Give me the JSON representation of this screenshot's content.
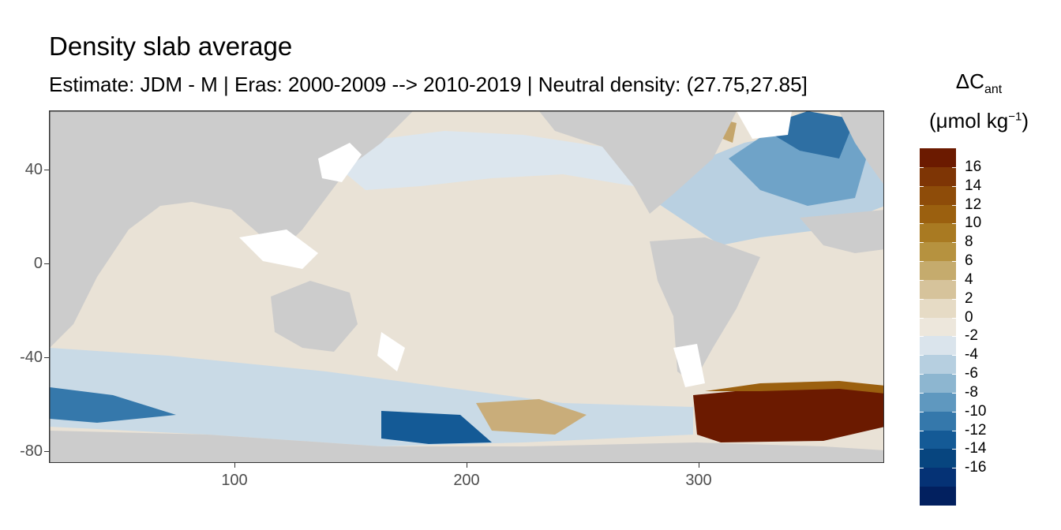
{
  "title": "Density slab average",
  "subtitle": "Estimate: JDM - M | Eras: 2000-2009 --> 2010-2019 | Neutral density: (27.75,27.85]",
  "map": {
    "x_ticks": [
      "100",
      "200",
      "300"
    ],
    "y_ticks": [
      "40",
      "0",
      "-40",
      "-80"
    ],
    "xlim": [
      20,
      380
    ],
    "ylim": [
      -85,
      65
    ],
    "land_color": "#cccccc",
    "no_data_color": "#ffffff"
  },
  "legend": {
    "title_symbol": "ΔC",
    "title_subscript": "ant",
    "unit_open": "(μmol kg",
    "unit_sup": "−1",
    "unit_close": ")",
    "labels": [
      "16",
      "14",
      "12",
      "10",
      "8",
      "6",
      "4",
      "2",
      "0",
      "-2",
      "-4",
      "-6",
      "-8",
      "-10",
      "-12",
      "-14",
      "-16"
    ],
    "colors": [
      "#6b1a00",
      "#7e3505",
      "#8e4c09",
      "#9b600f",
      "#a97a22",
      "#b6923f",
      "#c5ab6d",
      "#d6c39b",
      "#e6dbc5",
      "#ede7dc",
      "#dae4ec",
      "#b6cfe0",
      "#8db6d0",
      "#5f98bf",
      "#3578ab",
      "#145a96",
      "#07457f",
      "#053275",
      "#02205f"
    ]
  }
}
